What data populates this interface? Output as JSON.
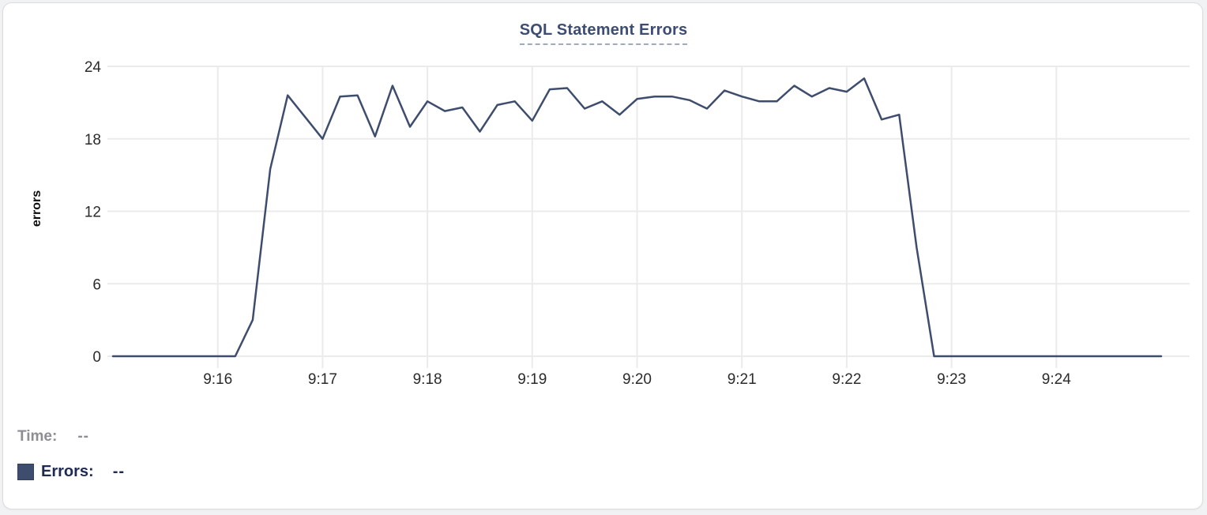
{
  "chart_data": {
    "type": "line",
    "title": "SQL Statement Errors",
    "ylabel": "errors",
    "xlabel": "",
    "grid": true,
    "legend_position": "none",
    "x_start_time": "9:15:00",
    "x_interval_seconds": 10,
    "x_total_seconds": 600,
    "x_tick_labels": [
      "9:16",
      "9:17",
      "9:18",
      "9:19",
      "9:20",
      "9:21",
      "9:22",
      "9:23",
      "9:24"
    ],
    "x_tick_minutes_from_start": [
      1,
      2,
      3,
      4,
      5,
      6,
      7,
      8,
      9
    ],
    "y_ticks": [
      0,
      6,
      12,
      18,
      24
    ],
    "ylim": [
      0,
      24
    ],
    "series": [
      {
        "name": "Errors",
        "color": "#3e4d6d",
        "values": [
          0,
          0,
          0,
          0,
          0,
          0,
          0,
          0,
          3,
          15.5,
          21.6,
          19.8,
          18,
          21.5,
          21.6,
          18.2,
          22.4,
          19,
          21.1,
          20.3,
          20.6,
          18.6,
          20.8,
          21.1,
          19.5,
          22.1,
          22.2,
          20.5,
          21.1,
          20,
          21.3,
          21.5,
          21.5,
          21.2,
          20.5,
          22,
          21.5,
          21.1,
          21.1,
          22.4,
          21.5,
          22.2,
          21.9,
          23,
          19.6,
          20,
          9,
          0,
          0,
          0,
          0,
          0,
          0,
          0,
          0,
          0,
          0,
          0,
          0,
          0,
          0
        ]
      }
    ]
  },
  "tooltip": {
    "time_label": "Time:",
    "time_value": "--",
    "errors_label": "Errors:",
    "errors_value": "--"
  },
  "colors": {
    "line": "#3e4d6d",
    "title": "#3c4d71",
    "title_underline": "#9fa9c0",
    "grid": "#ebebeb",
    "tick_text": "#2b2b2b",
    "time_label_text": "#8d8d92",
    "errors_label_text": "#1f2a52",
    "card_border": "#dcdcde",
    "card_background": "#ffffff"
  }
}
